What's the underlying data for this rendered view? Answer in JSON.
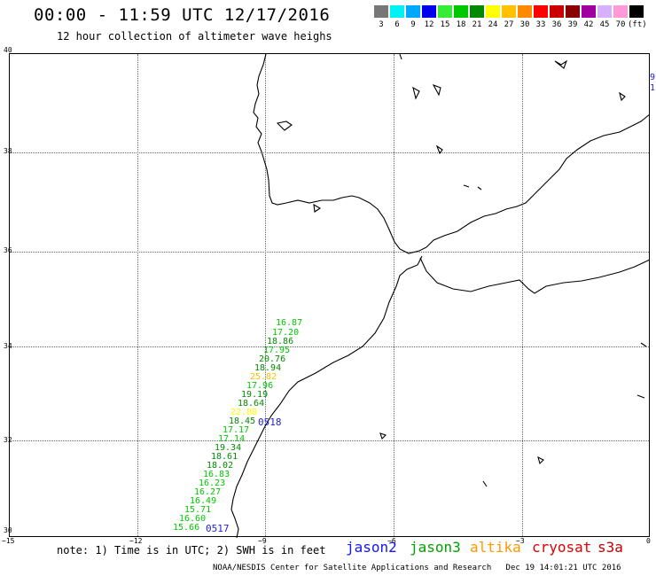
{
  "title": "00:00 - 11:59 UTC 12/17/2016",
  "subtitle": "12 hour collection of altimeter wave heighs",
  "legend": {
    "swatches": [
      {
        "label": "3",
        "color": "#777777"
      },
      {
        "label": "6",
        "color": "#00f2f2"
      },
      {
        "label": "9",
        "color": "#00a8ff"
      },
      {
        "label": "12",
        "color": "#0000f0"
      },
      {
        "label": "15",
        "color": "#36ec36"
      },
      {
        "label": "18",
        "color": "#00c800"
      },
      {
        "label": "21",
        "color": "#008a00"
      },
      {
        "label": "24",
        "color": "#ffff00"
      },
      {
        "label": "27",
        "color": "#ffc000"
      },
      {
        "label": "30",
        "color": "#ff8a00"
      },
      {
        "label": "33",
        "color": "#ff0000"
      },
      {
        "label": "36",
        "color": "#cc0000"
      },
      {
        "label": "39",
        "color": "#8b0000"
      },
      {
        "label": "42",
        "color": "#a000a0"
      },
      {
        "label": "45",
        "color": "#d7b0ff"
      },
      {
        "label": "70",
        "color": "#ff9ad7"
      },
      {
        "label": "(ft)",
        "color": "#000000"
      }
    ]
  },
  "axes": {
    "lat_labels": [
      "40",
      "38",
      "36",
      "34",
      "32",
      "30"
    ],
    "lon_labels": [
      "−15",
      "−12",
      "−9",
      "−6",
      "−3",
      "0"
    ]
  },
  "tracks": {
    "jason3_values": [
      "16.87",
      "17.20",
      "18.86",
      "17.95",
      "20.76",
      "18.94",
      "25.82",
      "17.96",
      "19.19",
      "18.64",
      "22.88",
      "18.45",
      "17.17",
      "17.14",
      "19.34",
      "18.61",
      "18.02",
      "16.83",
      "16.23",
      "16.27",
      "16.49",
      "15.71",
      "16.60",
      "15.66"
    ],
    "orbit_tags": [
      "0518",
      "0517"
    ],
    "edge_tags": [
      "9",
      "1"
    ]
  },
  "note": "note: 1) Time is in UTC; 2) SWH is in feet",
  "satellites": [
    {
      "name": "jason2",
      "color": "#1414ff"
    },
    {
      "name": "jason3",
      "color": "#00a000"
    },
    {
      "name": "altika",
      "color": "#ff9900"
    },
    {
      "name": "cryosat",
      "color": "#e00000"
    },
    {
      "name": "s3a",
      "color": "#c00000"
    }
  ],
  "credit": "NOAA/NESDIS Center for Satellite Applications and Research   Dec 19 14:01:21 UTC 2016"
}
